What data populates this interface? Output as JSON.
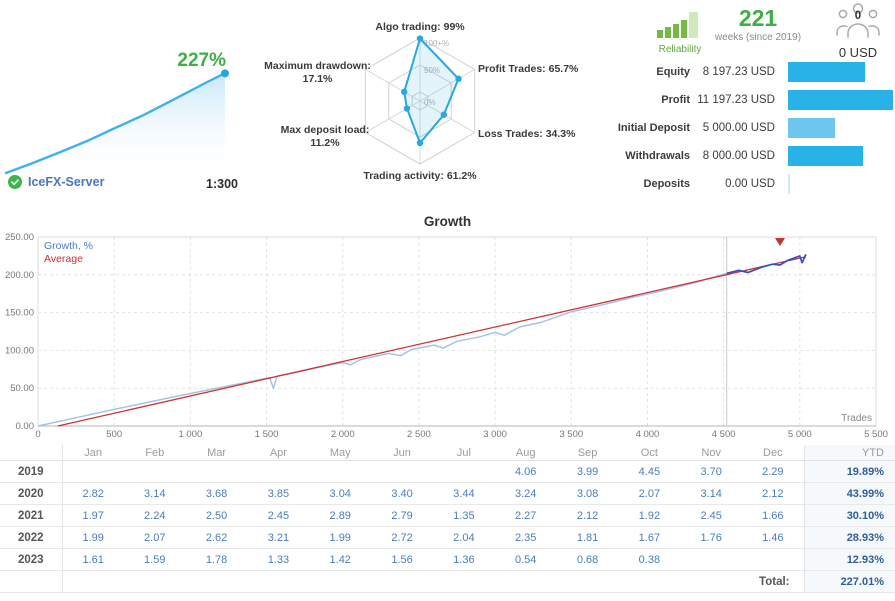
{
  "account": {
    "growth_percent": "227%",
    "server": "IceFX-Server",
    "leverage": "1:300"
  },
  "summary": {
    "reliability_label": "Reliability",
    "weeks_value": "221",
    "weeks_label": "weeks (since 2019)",
    "subscribers_count": "0",
    "subscribers_funds": "0 USD",
    "max_amount": 11197.23,
    "rows": [
      {
        "label": "Equity",
        "value": "8 197.23 USD",
        "amount": 8197.23,
        "light": false
      },
      {
        "label": "Profit",
        "value": "11 197.23 USD",
        "amount": 11197.23,
        "light": false
      },
      {
        "label": "Initial Deposit",
        "value": "5 000.00 USD",
        "amount": 5000.0,
        "light": true
      },
      {
        "label": "Withdrawals",
        "value": "8 000.00 USD",
        "amount": 8000.0,
        "light": false
      },
      {
        "label": "Deposits",
        "value": "0.00 USD",
        "amount": 0.0,
        "light": true
      }
    ]
  },
  "chart_data": [
    {
      "name": "account-growth-sparkline",
      "type": "area",
      "final_value_label": "227%",
      "ylim": [
        0,
        230
      ],
      "points": [
        [
          0,
          0
        ],
        [
          0.12,
          22
        ],
        [
          0.25,
          48
        ],
        [
          0.38,
          75
        ],
        [
          0.5,
          103
        ],
        [
          0.62,
          130
        ],
        [
          0.73,
          158
        ],
        [
          0.83,
          184
        ],
        [
          0.91,
          205
        ],
        [
          0.97,
          220
        ],
        [
          1,
          227
        ]
      ]
    },
    {
      "name": "trading-radar",
      "type": "radar",
      "rings": [
        "100+%",
        "50%",
        "0%"
      ],
      "metrics": [
        {
          "label": "Algo trading:",
          "value_text": "99%",
          "value": 0.99
        },
        {
          "label": "Profit Trades:",
          "value_text": "65.7%",
          "value": 0.657
        },
        {
          "label": "Loss Trades:",
          "value_text": "34.3%",
          "value": 0.343
        },
        {
          "label": "Trading activity:",
          "value_text": "61.2%",
          "value": 0.612
        },
        {
          "label": "Max deposit load:",
          "value_text": "11.2%",
          "value": 0.112
        },
        {
          "label": "Maximum drawdown:",
          "value_text": "17.1%",
          "value": 0.171
        }
      ]
    },
    {
      "name": "growth-chart",
      "type": "line",
      "title": "Growth",
      "xlabel": "Trades",
      "xlim": [
        0,
        5500
      ],
      "ylim": [
        0,
        250
      ],
      "x_tick_step": 500,
      "x_tick_labels": [
        "0",
        "500",
        "1 000",
        "1 500",
        "2 000",
        "2 500",
        "3 000",
        "3 500",
        "4 000",
        "4 500",
        "5 000",
        "5 500"
      ],
      "y_tick_step": 50,
      "y_tick_labels": [
        "0.00",
        "50.00",
        "100.00",
        "150.00",
        "200.00",
        "250.00"
      ],
      "legend": [
        {
          "label": "Growth, %",
          "color": "#4a7cc9"
        },
        {
          "label": "Average",
          "color": "#d03030"
        }
      ],
      "vline_x": 4520,
      "marker_x": 4870,
      "out_of_sample_start": 4520,
      "series": [
        {
          "name": "Growth, %",
          "color": "#a6c3e4",
          "oos_color": "#3a50c4",
          "points": [
            [
              0,
              0
            ],
            [
              250,
              11
            ],
            [
              500,
              22
            ],
            [
              750,
              32.5
            ],
            [
              1000,
              43
            ],
            [
              1250,
              53
            ],
            [
              1450,
              61
            ],
            [
              1520,
              64
            ],
            [
              1545,
              50
            ],
            [
              1570,
              66
            ],
            [
              1700,
              71
            ],
            [
              1850,
              78
            ],
            [
              2000,
              84
            ],
            [
              2050,
              81
            ],
            [
              2120,
              88
            ],
            [
              2300,
              96
            ],
            [
              2380,
              93
            ],
            [
              2450,
              101
            ],
            [
              2600,
              107
            ],
            [
              2660,
              103
            ],
            [
              2750,
              112
            ],
            [
              2900,
              118
            ],
            [
              3000,
              124
            ],
            [
              3060,
              120
            ],
            [
              3160,
              131
            ],
            [
              3300,
              137
            ],
            [
              3500,
              151
            ],
            [
              3700,
              160
            ],
            [
              3900,
              170
            ],
            [
              4100,
              179
            ],
            [
              4300,
              189
            ],
            [
              4450,
              198
            ],
            [
              4520,
              202
            ],
            [
              4600,
              206
            ],
            [
              4660,
              203
            ],
            [
              4750,
              210
            ],
            [
              4820,
              214
            ],
            [
              4870,
              213
            ],
            [
              4920,
              219
            ],
            [
              4960,
              222
            ],
            [
              5000,
              225
            ],
            [
              5015,
              216
            ],
            [
              5040,
              227
            ]
          ]
        },
        {
          "name": "Average",
          "color": "#d03030",
          "points": [
            [
              130,
              0
            ],
            [
              5040,
              224
            ]
          ]
        }
      ]
    }
  ],
  "monthly": {
    "months": [
      "Jan",
      "Feb",
      "Mar",
      "Apr",
      "May",
      "Jun",
      "Jul",
      "Aug",
      "Sep",
      "Oct",
      "Nov",
      "Dec"
    ],
    "ytd_label": "YTD",
    "rows": [
      {
        "year": "2019",
        "values": [
          "",
          "",
          "",
          "",
          "",
          "",
          "",
          "4.06",
          "3.99",
          "4.45",
          "3.70",
          "2.29"
        ],
        "ytd": "19.89%"
      },
      {
        "year": "2020",
        "values": [
          "2.82",
          "3.14",
          "3.68",
          "3.85",
          "3.04",
          "3.40",
          "3.44",
          "3.24",
          "3.08",
          "2.07",
          "3.14",
          "2.12"
        ],
        "ytd": "43.99%"
      },
      {
        "year": "2021",
        "values": [
          "1.97",
          "2.24",
          "2.50",
          "2.45",
          "2.89",
          "2.79",
          "1.35",
          "2.27",
          "2.12",
          "1.92",
          "2.45",
          "1.66"
        ],
        "ytd": "30.10%"
      },
      {
        "year": "2022",
        "values": [
          "1.99",
          "2.07",
          "2.62",
          "3.21",
          "1.99",
          "2.72",
          "2.04",
          "2.35",
          "1.81",
          "1.67",
          "1.76",
          "1.46"
        ],
        "ytd": "28.93%"
      },
      {
        "year": "2023",
        "values": [
          "1.61",
          "1.59",
          "1.78",
          "1.33",
          "1.42",
          "1.56",
          "1.36",
          "0.54",
          "0.68",
          "0.38",
          "",
          ""
        ],
        "ytd": "12.93%"
      }
    ],
    "total_label": "Total:",
    "total_value": "227.01%"
  },
  "colors": {
    "accent_green": "#3cb043",
    "bar_blue": "#29b2e8",
    "bar_light_blue": "#6cc6ef",
    "bar_zero": "#cfe9f7",
    "spark_line": "#3fb0ee",
    "radar_stroke": "#29a8e0",
    "grid": "#e2e2e2"
  }
}
